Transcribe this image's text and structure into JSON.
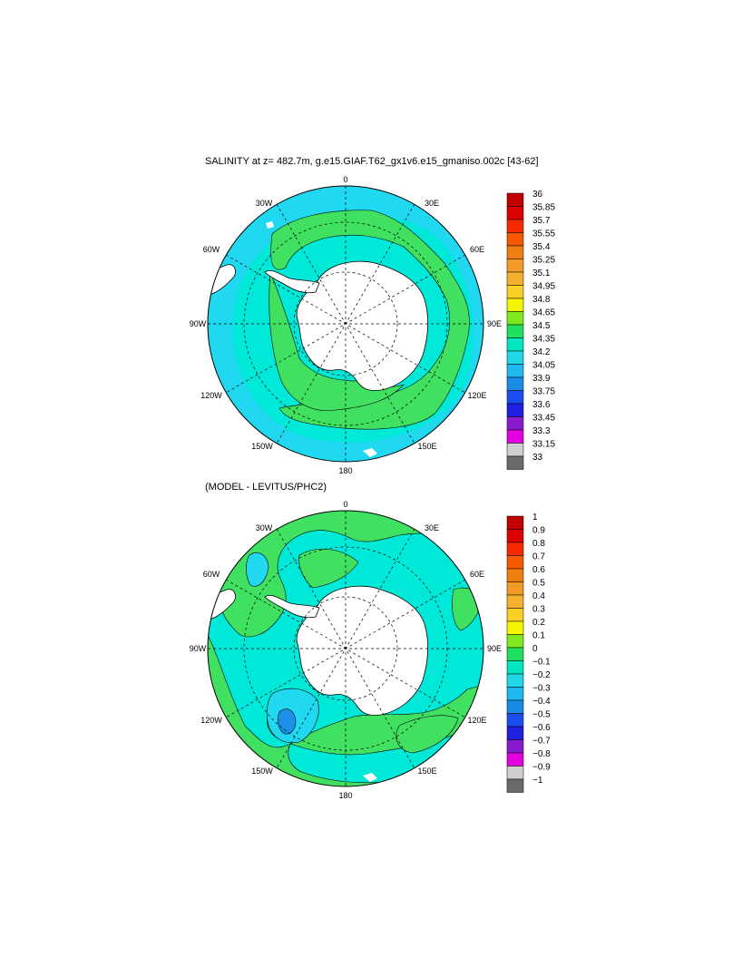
{
  "panel1": {
    "title": "SALINITY at z= 482.7m, g.e15.GIAF.T62_gx1v6.e15_gmaniso.002c [43-62]",
    "colorbar_labels": [
      "36",
      "35.85",
      "35.7",
      "35.55",
      "35.4",
      "35.25",
      "35.1",
      "34.95",
      "34.8",
      "34.65",
      "34.5",
      "34.35",
      "34.2",
      "34.05",
      "33.9",
      "33.75",
      "33.6",
      "33.45",
      "33.3",
      "33.15",
      "33"
    ]
  },
  "panel2": {
    "title": "(MODEL - LEVITUS/PHC2)",
    "colorbar_labels": [
      "1",
      "0.9",
      "0.8",
      "0.7",
      "0.6",
      "0.5",
      "0.4",
      "0.3",
      "0.2",
      "0.1",
      "0",
      "−0.1",
      "−0.2",
      "−0.3",
      "−0.4",
      "−0.5",
      "−0.6",
      "−0.7",
      "−0.8",
      "−0.9",
      "−1"
    ]
  },
  "longitude_labels": [
    "0",
    "30E",
    "60E",
    "90E",
    "120E",
    "150E",
    "180",
    "150W",
    "120W",
    "90W",
    "60W",
    "30W"
  ],
  "colorbar_colors": [
    "#c00000",
    "#dd0000",
    "#f52a00",
    "#f55a00",
    "#f07f10",
    "#f59a28",
    "#f5b030",
    "#f7d028",
    "#f5f500",
    "#80e820",
    "#20e060",
    "#00e6c0",
    "#20d8e8",
    "#20b8f0",
    "#1a8ce8",
    "#1a4ef0",
    "#2020e0",
    "#8a1ad0",
    "#e000e0",
    "#cfcfcf",
    "#6a6a6a"
  ],
  "map_colors": {
    "land": "#ffffff",
    "ocean_bg": "#00e8d8",
    "green": "#40e060",
    "yellow": "#f5f500",
    "lightblue": "#20d8f0",
    "blue": "#1a90e8",
    "deepblue": "#2060e0"
  }
}
